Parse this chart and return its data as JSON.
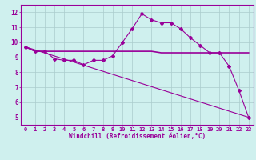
{
  "xlabel": "Windchill (Refroidissement éolien,°C)",
  "background_color": "#cff0ee",
  "line_color": "#990099",
  "grid_color": "#aacccc",
  "xlim": [
    -0.5,
    23.5
  ],
  "ylim": [
    4.5,
    12.5
  ],
  "xticks": [
    0,
    1,
    2,
    3,
    4,
    5,
    6,
    7,
    8,
    9,
    10,
    11,
    12,
    13,
    14,
    15,
    16,
    17,
    18,
    19,
    20,
    21,
    22,
    23
  ],
  "yticks": [
    5,
    6,
    7,
    8,
    9,
    10,
    11,
    12
  ],
  "line1_x": [
    0,
    1,
    2,
    3,
    4,
    5,
    6,
    7,
    8,
    9,
    10,
    11,
    12,
    13,
    14,
    15,
    16,
    17,
    18,
    19,
    20,
    21,
    22,
    23
  ],
  "line1_y": [
    9.7,
    9.4,
    9.4,
    8.9,
    8.8,
    8.8,
    8.5,
    8.8,
    8.8,
    9.1,
    10.0,
    10.9,
    11.9,
    11.5,
    11.3,
    11.3,
    10.9,
    10.3,
    9.8,
    9.3,
    9.3,
    8.4,
    6.8,
    5.0
  ],
  "line2_x": [
    0,
    1,
    2,
    3,
    4,
    5,
    6,
    7,
    8,
    9,
    10,
    11,
    12,
    13,
    14,
    15,
    16,
    17,
    18,
    19,
    20,
    21,
    22,
    23
  ],
  "line2_y": [
    9.7,
    9.4,
    9.4,
    9.4,
    9.4,
    9.4,
    9.4,
    9.4,
    9.4,
    9.4,
    9.4,
    9.4,
    9.4,
    9.4,
    9.3,
    9.3,
    9.3,
    9.3,
    9.3,
    9.3,
    9.3,
    9.3,
    9.3,
    9.3
  ],
  "line3_x": [
    0,
    23
  ],
  "line3_y": [
    9.7,
    5.0
  ],
  "tick_fontsize": 5.0,
  "xlabel_fontsize": 5.5
}
